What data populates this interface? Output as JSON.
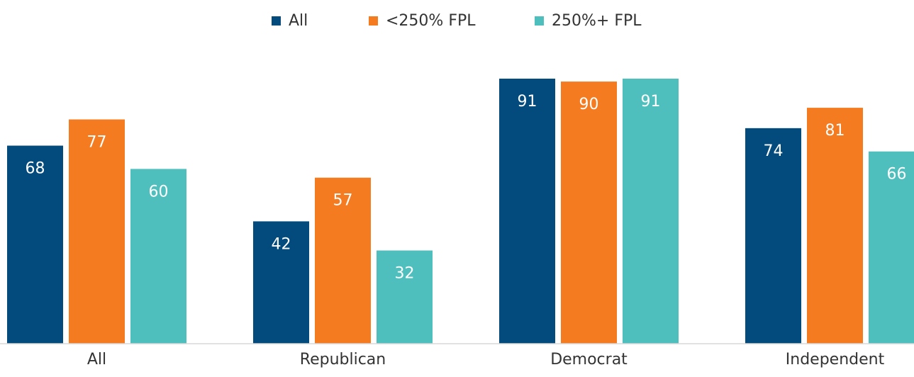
{
  "chart_data": {
    "type": "bar",
    "categories": [
      "All",
      "Republican",
      "Democrat",
      "Independent"
    ],
    "series": [
      {
        "name": "All",
        "color": "#034a7d",
        "values": [
          68,
          42,
          91,
          74
        ]
      },
      {
        "name": "<250% FPL",
        "color": "#f47b20",
        "values": [
          77,
          57,
          90,
          81
        ]
      },
      {
        "name": "250%+ FPL",
        "color": "#4ebfbd",
        "values": [
          60,
          32,
          91,
          66
        ]
      }
    ],
    "legend": "top"
  }
}
